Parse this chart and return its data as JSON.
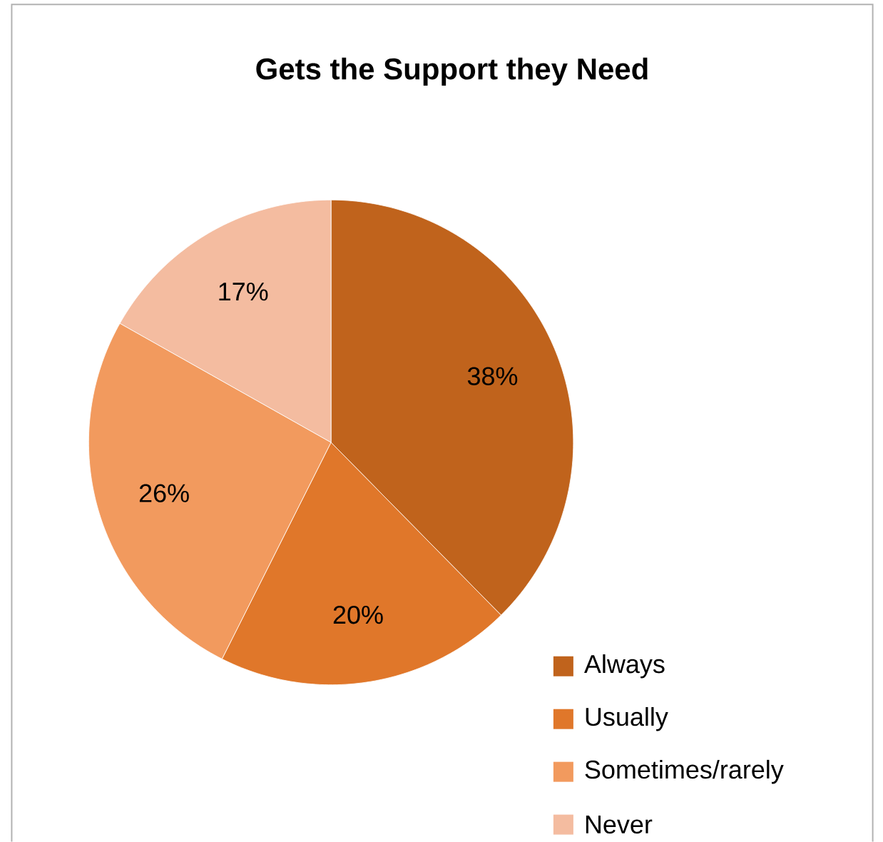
{
  "chart_data": {
    "type": "pie",
    "title": "Gets the Support they Need",
    "categories": [
      "Always",
      "Usually",
      "Sometimes/rarely",
      "Never"
    ],
    "values": [
      38,
      20,
      26,
      17
    ],
    "colors": [
      "#c0631c",
      "#e0772a",
      "#f29a5e",
      "#f4bca0"
    ],
    "value_labels": [
      "38%",
      "20%",
      "26%",
      "17%"
    ],
    "legend": "bottom right"
  }
}
